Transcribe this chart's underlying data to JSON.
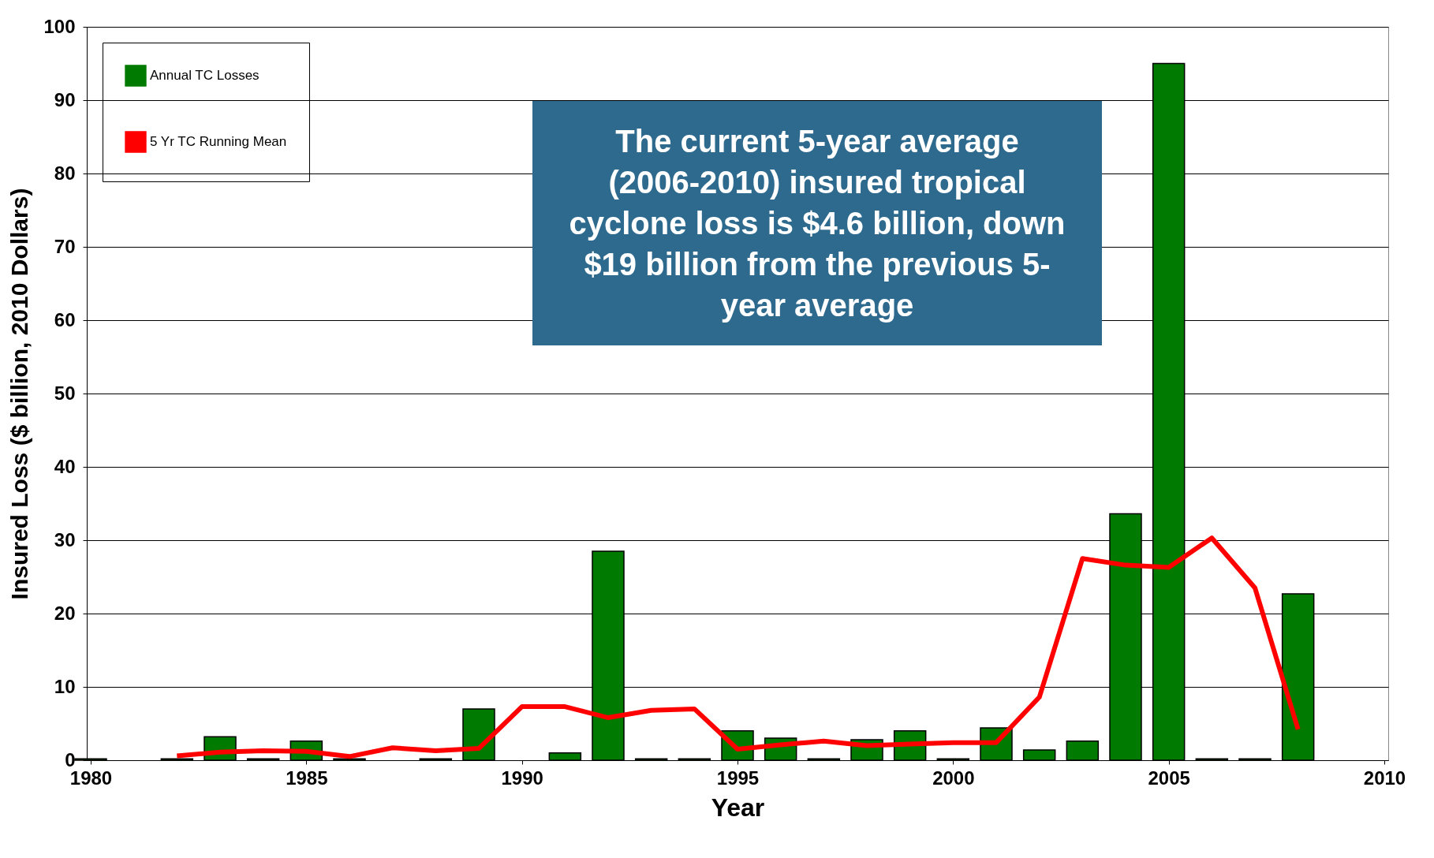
{
  "chart_data": {
    "type": "bar",
    "xlabel": "Year",
    "ylabel": "Insured Loss ($ billion, 2010 Dollars)",
    "annotations": [
      "The current 5-year average (2006-2010) insured tropical cyclone loss is $4.6 billion, down $19 billion from the previous 5-year average"
    ],
    "x": [
      1980,
      1981,
      1982,
      1983,
      1984,
      1985,
      1986,
      1987,
      1988,
      1989,
      1990,
      1991,
      1992,
      1993,
      1994,
      1995,
      1996,
      1997,
      1998,
      1999,
      2000,
      2001,
      2002,
      2003,
      2004,
      2005,
      2006,
      2007,
      2008
    ],
    "series": [
      {
        "name": "Annual TC Losses",
        "color": "#007a00",
        "values": [
          0.2,
          0,
          0.2,
          3.2,
          0.2,
          2.6,
          0.2,
          0,
          0.2,
          7,
          0,
          1,
          28.5,
          0.2,
          0.2,
          4,
          3,
          0.2,
          2.8,
          4,
          0.2,
          4.4,
          1.4,
          2.6,
          33.6,
          95,
          0.2,
          0.2,
          22.7
        ]
      },
      {
        "name": "5 Yr TC Running Mean",
        "type": "line",
        "color": "#ff0000",
        "x": [
          1982,
          1983,
          1984,
          1985,
          1986,
          1987,
          1988,
          1989,
          1990,
          1991,
          1992,
          1993,
          1994,
          1995,
          1996,
          1997,
          1998,
          1999,
          2000,
          2001,
          2002,
          2003,
          2004,
          2005,
          2006,
          2007,
          2008
        ],
        "values": [
          0.6,
          1.1,
          1.3,
          1.2,
          0.5,
          1.7,
          1.3,
          1.6,
          7.3,
          7.3,
          5.8,
          6.8,
          7.0,
          1.5,
          2.1,
          2.6,
          2.0,
          2.2,
          2.4,
          2.4,
          8.6,
          27.5,
          26.6,
          26.3,
          30.3,
          23.5,
          4.2
        ]
      }
    ],
    "xlim": [
      1980,
      2010
    ],
    "xticks": [
      1980,
      1985,
      1990,
      1995,
      2000,
      2005,
      2010
    ],
    "ylim": [
      0,
      100
    ],
    "yticks": [
      0,
      10,
      20,
      30,
      40,
      50,
      60,
      70,
      80,
      90,
      100
    ],
    "grid": "y",
    "legend": "top left",
    "line_style": "solid",
    "marker": "none"
  }
}
